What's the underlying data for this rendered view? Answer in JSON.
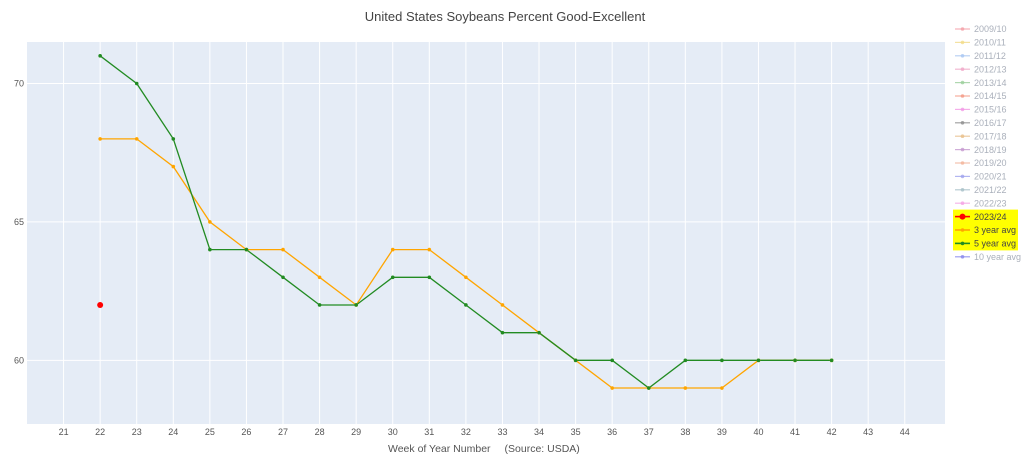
{
  "chart_data": {
    "type": "line",
    "title": "United States Soybeans Percent Good-Excellent",
    "xlabel": "Week of Year Number",
    "source_note": "(Source: USDA)",
    "x_ticks": [
      21,
      22,
      23,
      24,
      25,
      26,
      27,
      28,
      29,
      30,
      31,
      32,
      33,
      34,
      35,
      36,
      37,
      38,
      39,
      40,
      41,
      42,
      43,
      44
    ],
    "y_ticks": [
      60,
      65,
      70
    ],
    "xlim": [
      20,
      45.1
    ],
    "ylim": [
      57.7,
      71.5
    ],
    "grid": true,
    "legend_position": "right",
    "legend": [
      {
        "name": "2009/10",
        "color": "#f4a0a8",
        "active": false,
        "highlight": false
      },
      {
        "name": "2010/11",
        "color": "#f2dc8a",
        "active": false,
        "highlight": false
      },
      {
        "name": "2011/12",
        "color": "#a9c7f2",
        "active": false,
        "highlight": false
      },
      {
        "name": "2012/13",
        "color": "#f0a8c8",
        "active": false,
        "highlight": false
      },
      {
        "name": "2013/14",
        "color": "#9ccf9c",
        "active": false,
        "highlight": false
      },
      {
        "name": "2014/15",
        "color": "#f49a86",
        "active": false,
        "highlight": false
      },
      {
        "name": "2015/16",
        "color": "#f39ae6",
        "active": false,
        "highlight": false
      },
      {
        "name": "2016/17",
        "color": "#8e8e8e",
        "active": false,
        "highlight": false
      },
      {
        "name": "2017/18",
        "color": "#e8bf8a",
        "active": false,
        "highlight": false
      },
      {
        "name": "2018/19",
        "color": "#c69ad0",
        "active": false,
        "highlight": false
      },
      {
        "name": "2019/20",
        "color": "#f2b49a",
        "active": false,
        "highlight": false
      },
      {
        "name": "2020/21",
        "color": "#a0a4ee",
        "active": false,
        "highlight": false
      },
      {
        "name": "2021/22",
        "color": "#a7c0c8",
        "active": false,
        "highlight": false
      },
      {
        "name": "2022/23",
        "color": "#f4a4e4",
        "active": false,
        "highlight": false
      },
      {
        "name": "2023/24",
        "color": "#ff0000",
        "active": true,
        "highlight": true
      },
      {
        "name": "3 year avg",
        "color": "#ffa500",
        "active": true,
        "highlight": true
      },
      {
        "name": "5 year avg",
        "color": "#228b22",
        "active": true,
        "highlight": true
      },
      {
        "name": "10 year avg",
        "color": "#8888ee",
        "active": false,
        "highlight": false
      }
    ],
    "highlight_color": "#ffff00",
    "series": [
      {
        "name": "2023/24",
        "color": "#ff0000",
        "mode": "markers",
        "x": [
          22
        ],
        "y": [
          62
        ]
      },
      {
        "name": "3 year avg",
        "color": "#ffa500",
        "mode": "lines+markers",
        "x": [
          22,
          23,
          24,
          25,
          26,
          27,
          28,
          29,
          30,
          31,
          32,
          33,
          34,
          35,
          36,
          37,
          38,
          39,
          40,
          41,
          42
        ],
        "y": [
          68,
          68,
          67,
          65,
          64,
          64,
          63,
          62,
          64,
          64,
          63,
          62,
          61,
          60,
          59,
          59,
          59,
          59,
          60,
          60,
          60
        ]
      },
      {
        "name": "5 year avg",
        "color": "#228b22",
        "mode": "lines+markers",
        "x": [
          22,
          23,
          24,
          25,
          26,
          27,
          28,
          29,
          30,
          31,
          32,
          33,
          34,
          35,
          36,
          37,
          38,
          39,
          40,
          41,
          42
        ],
        "y": [
          71,
          70,
          68,
          64,
          64,
          63,
          62,
          62,
          63,
          63,
          62,
          61,
          61,
          60,
          60,
          59,
          60,
          60,
          60,
          60,
          60
        ]
      }
    ]
  }
}
